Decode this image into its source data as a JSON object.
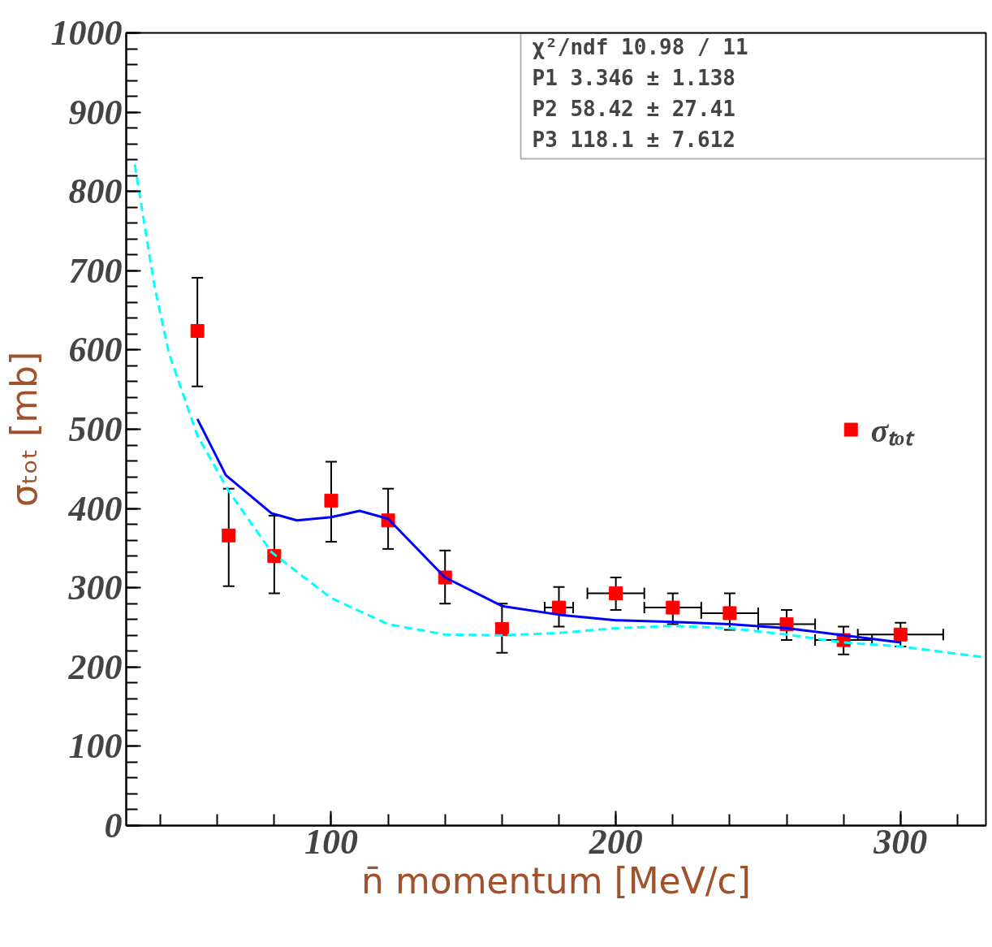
{
  "chart_data": {
    "type": "scatter",
    "xlabel": "n̄ momentum [MeV/c]",
    "ylabel": "σₜₒₜ [mb]",
    "xlim": [
      28,
      330
    ],
    "ylim": [
      0,
      1000
    ],
    "xticks": [
      100,
      200,
      300
    ],
    "yticks": [
      0,
      100,
      200,
      300,
      400,
      500,
      600,
      700,
      800,
      900,
      1000
    ],
    "grid": false,
    "legend": "right",
    "marker": "square",
    "annotations": [
      "χ²/ndf 10.98 / 11",
      "P1 3.346 ± 1.138",
      "P2 58.42 ± 27.41",
      "P3 118.1 ± 7.612"
    ],
    "series": [
      {
        "name": "σₜₒₜ",
        "color": "#ff0000",
        "x": [
          53,
          64,
          80,
          100,
          120,
          140,
          160,
          180,
          200,
          220,
          240,
          260,
          280,
          300
        ],
        "values": [
          624,
          366,
          340,
          410,
          385,
          313,
          248,
          275,
          293,
          275,
          268,
          254,
          234,
          241
        ],
        "errors": [
          [
            554,
            691
          ],
          [
            302,
            425
          ],
          [
            293,
            391
          ],
          [
            358,
            459
          ],
          [
            349,
            425
          ],
          [
            280,
            347
          ],
          [
            218,
            280
          ],
          [
            251,
            301
          ],
          [
            272,
            313
          ],
          [
            254,
            293
          ],
          [
            247,
            293
          ],
          [
            234,
            272
          ],
          [
            216,
            251
          ],
          [
            226,
            256
          ]
        ],
        "xerrors": [
          null,
          null,
          null,
          null,
          null,
          null,
          null,
          5,
          10,
          10,
          10,
          10,
          10,
          15
        ]
      },
      {
        "type": "line",
        "marker": "none",
        "color": "#0000ff",
        "line_style": "solid",
        "x": [
          53,
          63,
          79,
          88,
          100,
          110,
          120,
          140,
          160,
          180,
          200,
          220,
          240,
          260,
          280,
          300
        ],
        "values": [
          513,
          442,
          394,
          385,
          389,
          397,
          387,
          313,
          277,
          266,
          259,
          257,
          254,
          249,
          240,
          231
        ]
      },
      {
        "type": "line",
        "marker": "none",
        "color": "#00ffff",
        "line_style": "dashed",
        "x": [
          31,
          38,
          43,
          53,
          64,
          79,
          100,
          120,
          140,
          160,
          180,
          200,
          220,
          240,
          260,
          280,
          300,
          330
        ],
        "values": [
          834,
          679,
          596,
          492,
          422,
          345,
          287,
          254,
          241,
          240,
          243,
          249,
          252,
          249,
          241,
          231,
          226,
          212
        ]
      }
    ]
  }
}
